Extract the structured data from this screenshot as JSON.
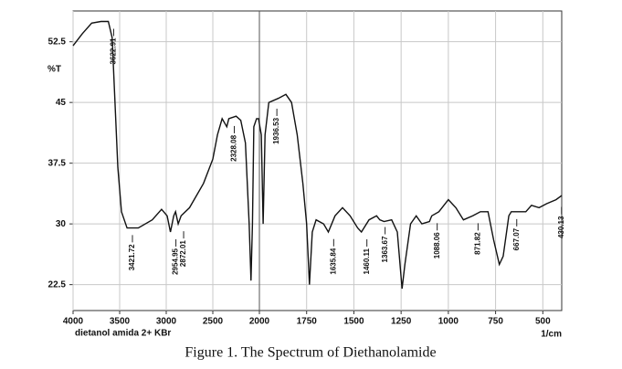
{
  "chart_data": {
    "type": "line",
    "caption": "Figure 1. The Spectrum of Diethanolamide",
    "ylabel": "%T",
    "xlabel": "1/cm",
    "sample_label": "dietanol amida 2+ KBr",
    "color": "#111111",
    "x": [
      4000,
      3900,
      3800,
      3700,
      3622,
      3580,
      3550,
      3520,
      3480,
      3421,
      3300,
      3150,
      3050,
      2990,
      2955,
      2920,
      2900,
      2872,
      2840,
      2750,
      2600,
      2500,
      2450,
      2400,
      2350,
      2328,
      2250,
      2200,
      2150,
      2110,
      2090,
      2075,
      2060,
      2030,
      2010,
      1990,
      1980,
      1970,
      1950,
      1900,
      1860,
      1830,
      1800,
      1770,
      1750,
      1735,
      1720,
      1700,
      1660,
      1635,
      1600,
      1560,
      1520,
      1480,
      1460,
      1420,
      1380,
      1363,
      1340,
      1300,
      1270,
      1245,
      1230,
      1200,
      1170,
      1140,
      1100,
      1088,
      1050,
      1000,
      960,
      920,
      871,
      830,
      790,
      760,
      730,
      710,
      680,
      667,
      630,
      590,
      560,
      520,
      480,
      430,
      400
    ],
    "values": [
      52,
      53.5,
      54.8,
      55,
      55,
      53,
      45,
      37,
      31.5,
      29.5,
      29.5,
      30.5,
      31.8,
      31,
      29,
      31,
      31.5,
      30,
      31,
      32,
      35,
      38,
      41,
      43,
      42,
      43,
      43.3,
      42.8,
      40,
      30,
      23,
      30,
      42,
      43,
      43,
      41,
      30,
      41,
      45,
      45.5,
      46,
      45,
      41,
      35,
      30,
      22.5,
      29,
      30.5,
      30,
      29,
      31,
      32,
      31,
      29.5,
      29,
      30.5,
      31,
      30.5,
      30.3,
      30.5,
      29,
      22,
      25,
      30,
      31,
      30,
      30.3,
      31,
      31.5,
      33,
      32,
      30.5,
      31,
      31.5,
      31.5,
      28,
      25,
      26,
      31,
      31.5,
      31.5,
      31.5,
      32.3,
      32,
      32.5,
      33,
      33.5
    ],
    "xlim": [
      4000,
      400
    ],
    "x_scale_break": 2000,
    "xticks": [
      4000,
      3500,
      3000,
      2500,
      2000,
      1750,
      1500,
      1250,
      1000,
      750,
      500
    ],
    "ylim": [
      19.3,
      56.3
    ],
    "yticks": [
      52.5,
      45,
      37.5,
      30,
      22.5
    ],
    "grid": true,
    "peak_labels": [
      3622.91,
      3421.72,
      2954.95,
      2872.01,
      2328.08,
      1936.53,
      1635.84,
      1460.11,
      1363.67,
      1088.06,
      871.82,
      667.07,
      430.13
    ]
  }
}
